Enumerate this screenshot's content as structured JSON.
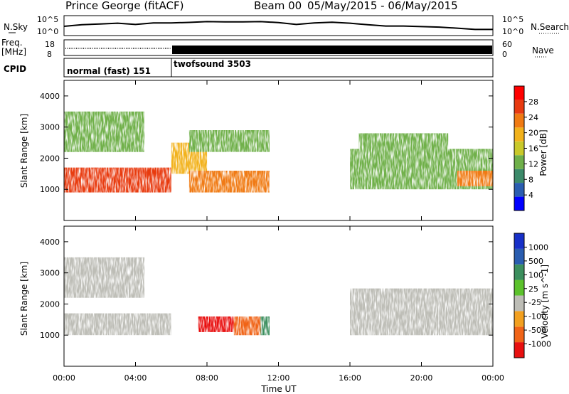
{
  "title": {
    "site": "Prince George (fitACF)",
    "beam": "Beam 00",
    "dates": "05/May/2015 - 06/May/2015"
  },
  "top_panel": {
    "left_label": "N.Sky",
    "right_label": "N.Search",
    "y_ticks": [
      "10^5",
      "10^0"
    ],
    "right_ticks": [
      "10^5",
      "10^0"
    ]
  },
  "freq_panel": {
    "left_label_line1": "Freq.",
    "left_label_line2": "[MHz]",
    "right_label": "Nave",
    "y_ticks": [
      "18",
      "8"
    ],
    "right_ticks": [
      "60",
      "0"
    ]
  },
  "cpid_panel": {
    "label": "CPID",
    "mode1": "normal (fast) 151",
    "mode2": "twofsound 3503"
  },
  "power_panel": {
    "ylabel": "Slant Range [km]",
    "y_ticks": [
      "4000",
      "3000",
      "2000",
      "1000"
    ],
    "colorbar_label": "Power [dB]",
    "colorbar_ticks": [
      "28",
      "24",
      "20",
      "16",
      "12",
      "8",
      "4"
    ]
  },
  "velocity_panel": {
    "ylabel": "Slant Range [km]",
    "y_ticks": [
      "4000",
      "3000",
      "2000",
      "1000"
    ],
    "colorbar_label": "Velocity [m s^-1]",
    "colorbar_ticks": [
      "1000",
      "500",
      "100",
      "25",
      "-25",
      "-100",
      "-500",
      "-1000"
    ]
  },
  "x_axis": {
    "label": "Time UT",
    "ticks": [
      "00:00",
      "04:00",
      "08:00",
      "12:00",
      "16:00",
      "20:00",
      "00:00"
    ]
  },
  "colors": {
    "power_scale": [
      "#0000ff",
      "#2a5db0",
      "#3c8a6a",
      "#6fb04a",
      "#c9c92a",
      "#f2b21c",
      "#f07a12",
      "#e83a10",
      "#ff0000"
    ],
    "velocity_scale": [
      "#e81010",
      "#f06418",
      "#f2a020",
      "#bdbdb6",
      "#5cc22c",
      "#3c8f5e",
      "#2a5db0",
      "#1730c8"
    ]
  },
  "chart_data": [
    {
      "type": "line",
      "title": "Prince George (fitACF) Beam 00 05/May/2015 - 06/May/2015",
      "xlabel": "Time UT",
      "ylabel": "N.Sky",
      "x_range_hours": [
        0,
        24
      ],
      "x": [
        0,
        1,
        2,
        3,
        4,
        5,
        6,
        7,
        8,
        9,
        10,
        11,
        12,
        13,
        14,
        15,
        16,
        17,
        18,
        19,
        20,
        21,
        22,
        23,
        24
      ],
      "series": [
        {
          "name": "N.Sky",
          "values": [
            0.5,
            0.6,
            0.65,
            0.7,
            0.62,
            0.72,
            0.72,
            0.75,
            0.8,
            0.78,
            0.78,
            0.8,
            0.74,
            0.62,
            0.72,
            0.76,
            0.7,
            0.6,
            0.52,
            0.52,
            0.48,
            0.45,
            0.38,
            0.3,
            0.3
          ]
        }
      ]
    },
    {
      "type": "line",
      "xlabel": "Time UT",
      "ylabel": "Freq. [MHz]",
      "ylim": [
        8,
        18
      ],
      "x": [
        0,
        6,
        6,
        24
      ],
      "series": [
        {
          "name": "Freq.",
          "values": [
            10.5,
            10.5,
            12,
            12
          ]
        }
      ]
    },
    {
      "type": "heatmap",
      "title": "",
      "xlabel": "Time UT",
      "ylabel": "Slant Range [km]",
      "ylim": [
        0,
        4500
      ],
      "colorbar": "Power [dB]",
      "colorbar_range": [
        0,
        32
      ],
      "x_ticks": [
        "00:00",
        "04:00",
        "08:00",
        "12:00",
        "16:00",
        "20:00",
        "00:00"
      ],
      "regions": [
        {
          "t": [
            0.0,
            6.0
          ],
          "range": [
            900,
            1700
          ],
          "power": 26
        },
        {
          "t": [
            0.0,
            4.5
          ],
          "range": [
            2200,
            3500
          ],
          "power": 14
        },
        {
          "t": [
            6.0,
            8.0
          ],
          "range": [
            1500,
            2500
          ],
          "power": 20
        },
        {
          "t": [
            7.0,
            11.5
          ],
          "range": [
            900,
            1600
          ],
          "power": 22
        },
        {
          "t": [
            7.0,
            11.5
          ],
          "range": [
            2200,
            2900
          ],
          "power": 13
        },
        {
          "t": [
            16.0,
            24.0
          ],
          "range": [
            1000,
            2300
          ],
          "power": 14
        },
        {
          "t": [
            16.5,
            21.5
          ],
          "range": [
            2200,
            2800
          ],
          "power": 12
        },
        {
          "t": [
            22.0,
            24.0
          ],
          "range": [
            1100,
            1600
          ],
          "power": 22
        }
      ]
    },
    {
      "type": "heatmap",
      "xlabel": "Time UT",
      "ylabel": "Slant Range [km]",
      "ylim": [
        0,
        4500
      ],
      "colorbar": "Velocity [m s^-1]",
      "colorbar_range": [
        -1000,
        1000
      ],
      "regions": [
        {
          "t": [
            0.0,
            6.0
          ],
          "range": [
            1000,
            1700
          ],
          "velocity": 0
        },
        {
          "t": [
            0.0,
            4.5
          ],
          "range": [
            2200,
            3500
          ],
          "velocity": 0
        },
        {
          "t": [
            7.5,
            9.5
          ],
          "range": [
            1100,
            1600
          ],
          "velocity": -800
        },
        {
          "t": [
            9.5,
            11.0
          ],
          "range": [
            1000,
            1600
          ],
          "velocity": -100
        },
        {
          "t": [
            11.0,
            11.5
          ],
          "range": [
            1000,
            1600
          ],
          "velocity": 500
        },
        {
          "t": [
            16.0,
            24.0
          ],
          "range": [
            1000,
            2500
          ],
          "velocity": 0
        }
      ]
    }
  ]
}
